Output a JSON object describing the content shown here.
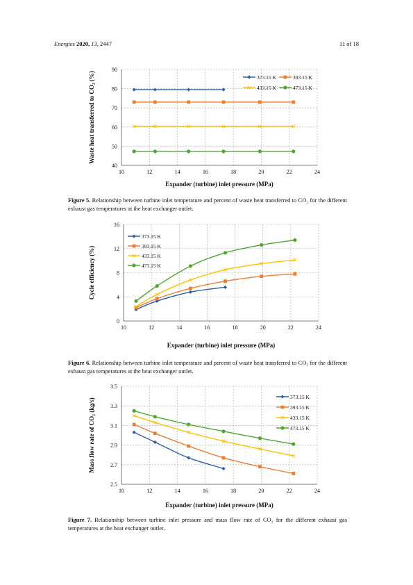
{
  "header": {
    "journal": "Energies",
    "year": "2020,",
    "volume": "13,",
    "article": "2447",
    "page": "11 of 18"
  },
  "colors": {
    "s373": "#2E5EAA",
    "s393": "#ED7D31",
    "s433": "#FFC000",
    "s473": "#4EA72E",
    "grid": "#A6A6A6"
  },
  "captions": [
    {
      "label": "Figure 5.",
      "text": "Relationship between turbine inlet temperature and percent of waste heat transferred to CO₂ for the different exhaust gas temperatures at the heat exchanger outlet."
    },
    {
      "label": "Figure 6.",
      "text": "Relationship between turbine inlet temperature and percent of waste heat transferred to CO₂ for the different exhaust gas temperatures at the heat exchanger outlet."
    },
    {
      "label": "Figure 7.",
      "text": "Relationship between turbine inlet pressure and mass flow rate of CO₂ for the different exhaust gas temperatures at the heat exchanger outlet."
    }
  ],
  "chart_data": [
    {
      "type": "line",
      "xlabel": "Expander (turbine) inlet pressure (MPa)",
      "ylabel": "Waste heat transferred to CO₂ (%)",
      "xlim": [
        10,
        24
      ],
      "ylim": [
        40,
        90
      ],
      "xticks": [
        "10",
        "12",
        "14",
        "16",
        "18",
        "20",
        "22",
        "24"
      ],
      "yticks": [
        "40",
        "50",
        "60",
        "70",
        "80",
        "90"
      ],
      "legend": "top-right",
      "series": [
        {
          "name": "373.15 K",
          "x": [
            10.9,
            12.4,
            14.8,
            17.3
          ],
          "y": [
            79.5,
            79.5,
            79.5,
            79.5
          ]
        },
        {
          "name": "393.15 K",
          "x": [
            10.9,
            12.4,
            14.8,
            17.3,
            19.9,
            22.3
          ],
          "y": [
            73,
            73,
            73,
            73,
            73,
            73
          ]
        },
        {
          "name": "433.15 K",
          "x": [
            10.9,
            12.4,
            14.8,
            17.3,
            19.9,
            22.3
          ],
          "y": [
            60.3,
            60.3,
            60.3,
            60.3,
            60.3,
            60.3
          ]
        },
        {
          "name": "473.15 K",
          "x": [
            10.9,
            12.4,
            14.8,
            17.3,
            19.9,
            22.3
          ],
          "y": [
            47.3,
            47.3,
            47.3,
            47.3,
            47.3,
            47.3
          ]
        }
      ]
    },
    {
      "type": "line",
      "xlabel": "Expander (turbine) inlet pressure (MPa)",
      "ylabel": "Cycle efficiency (%)",
      "xlim": [
        10,
        24
      ],
      "ylim": [
        0,
        16
      ],
      "xticks": [
        "10",
        "12",
        "14",
        "16",
        "18",
        "20",
        "22",
        "24"
      ],
      "yticks": [
        "0",
        "4",
        "8",
        "12",
        "16"
      ],
      "legend": "top-left",
      "series": [
        {
          "name": "373.15 K",
          "x": [
            10.9,
            12.4,
            14.8,
            17.3
          ],
          "y": [
            1.9,
            3.3,
            4.8,
            5.6
          ]
        },
        {
          "name": "393.15 K",
          "x": [
            10.9,
            12.4,
            14.8,
            17.3,
            19.9,
            22.3
          ],
          "y": [
            2.2,
            3.7,
            5.4,
            6.6,
            7.4,
            7.8
          ]
        },
        {
          "name": "433.15 K",
          "x": [
            10.9,
            12.4,
            14.8,
            17.3,
            19.9,
            22.3
          ],
          "y": [
            2.4,
            4.4,
            6.8,
            8.5,
            9.5,
            10.1
          ]
        },
        {
          "name": "473.15 K",
          "x": [
            10.9,
            12.4,
            14.8,
            17.3,
            19.9,
            22.3
          ],
          "y": [
            3.3,
            5.8,
            9.1,
            11.3,
            12.6,
            13.4
          ]
        }
      ]
    },
    {
      "type": "line",
      "xlabel": "Expander (turbine) inlet pressure (MPa)",
      "ylabel": "Mass flow rate of CO₂ (kg/s)",
      "xlim": [
        10,
        24
      ],
      "ylim": [
        2.5,
        3.5
      ],
      "xticks": [
        "10",
        "12",
        "14",
        "16",
        "18",
        "20",
        "22",
        "24"
      ],
      "yticks": [
        "2.5",
        "2.7",
        "2.9",
        "3.1",
        "3.3",
        "3.5"
      ],
      "legend": "top-right",
      "series": [
        {
          "name": "373.15 K",
          "x": [
            10.9,
            12.4,
            14.8,
            17.3
          ],
          "y": [
            3.03,
            2.93,
            2.77,
            2.66
          ]
        },
        {
          "name": "393.15 K",
          "x": [
            10.9,
            12.4,
            14.8,
            17.3,
            19.9,
            22.3
          ],
          "y": [
            3.11,
            3.02,
            2.89,
            2.77,
            2.68,
            2.61
          ]
        },
        {
          "name": "433.15 K",
          "x": [
            10.9,
            12.4,
            14.8,
            17.3,
            19.9,
            22.3
          ],
          "y": [
            3.2,
            3.13,
            3.03,
            2.94,
            2.86,
            2.79
          ]
        },
        {
          "name": "473.15 K",
          "x": [
            10.9,
            12.4,
            14.8,
            17.3,
            19.9,
            22.3
          ],
          "y": [
            3.25,
            3.19,
            3.11,
            3.04,
            2.97,
            2.91
          ]
        }
      ]
    }
  ]
}
